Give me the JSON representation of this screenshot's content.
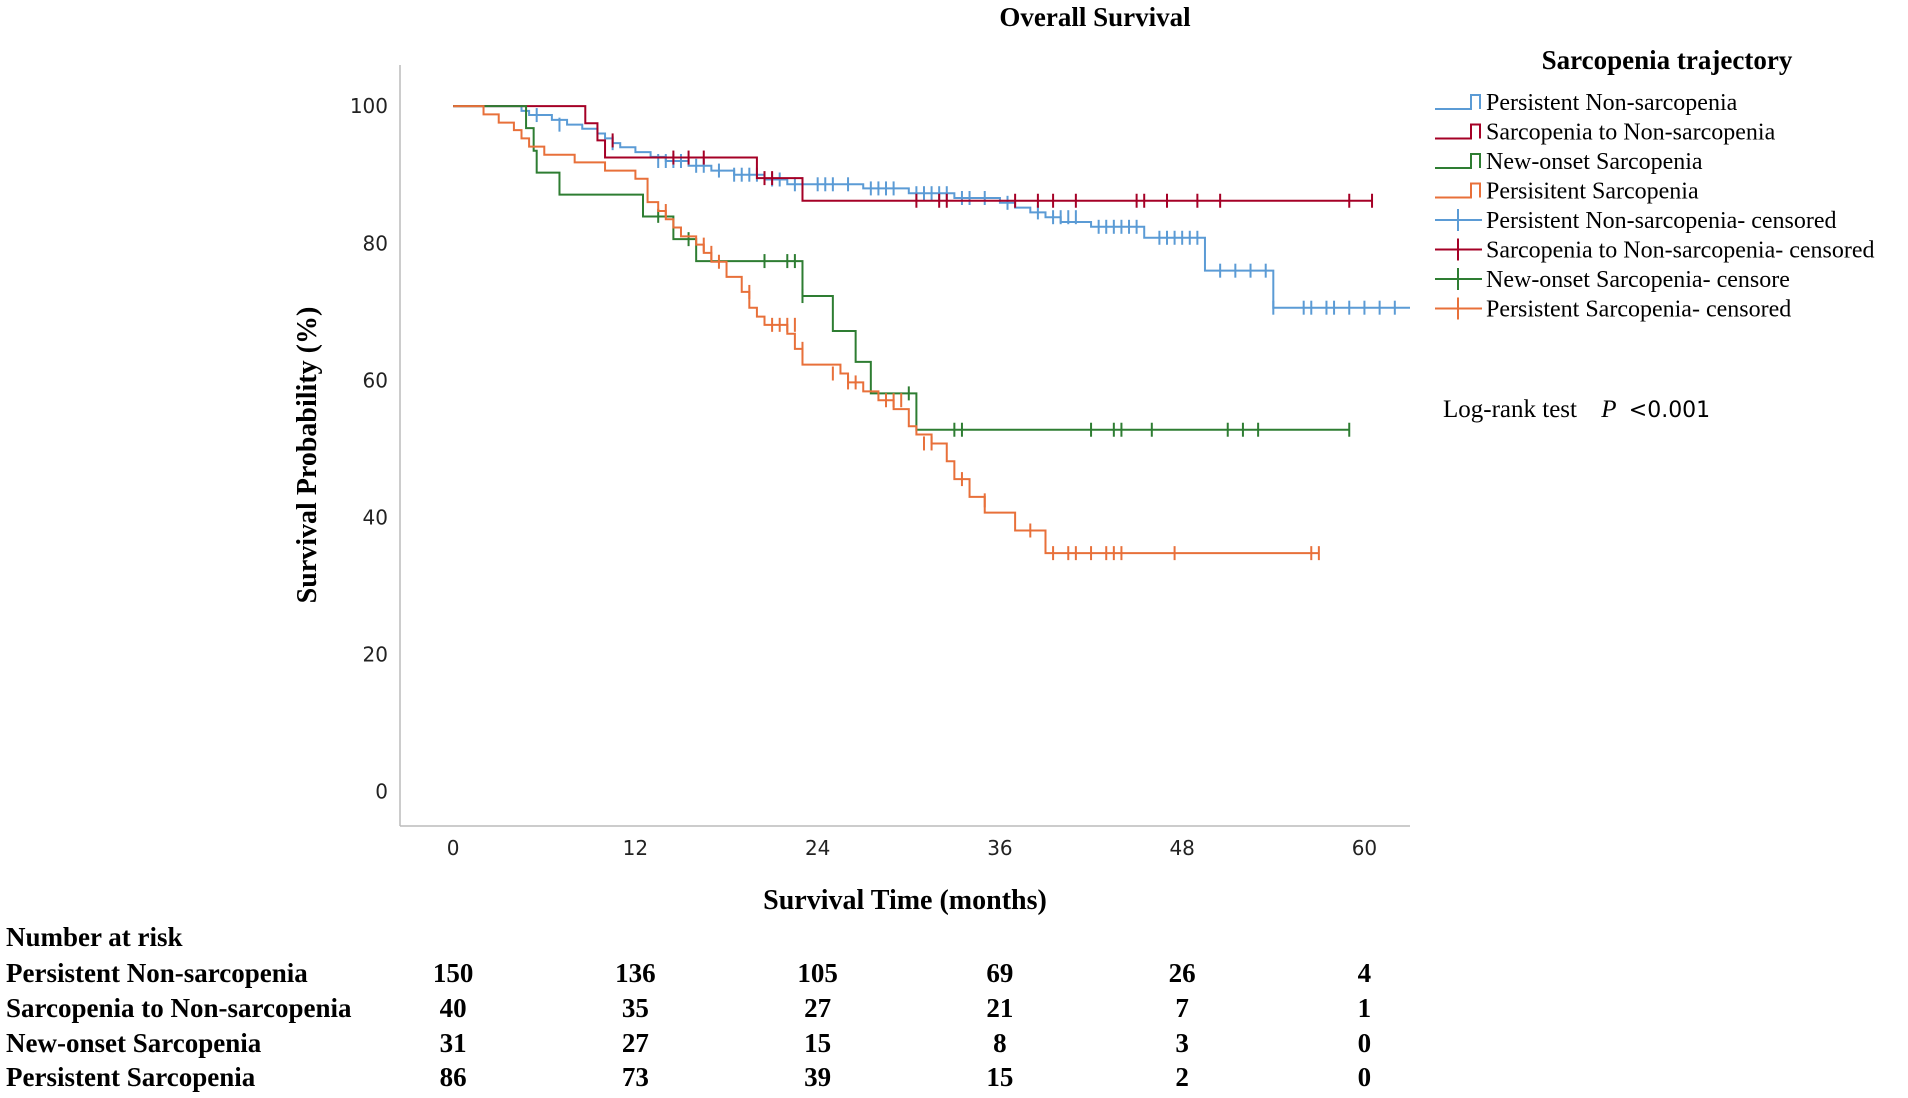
{
  "chart_data": {
    "type": "line",
    "subtype": "kaplan-meier",
    "title": "Overall Survival",
    "xlabel": "Survival Time (months)",
    "ylabel": "Survival Probability (%)",
    "xlim": [
      -3.5,
      63
    ],
    "ylim": [
      -5,
      106
    ],
    "xticks": [
      0,
      12,
      24,
      36,
      48,
      60
    ],
    "yticks": [
      0,
      20,
      40,
      60,
      80,
      100
    ],
    "legend_title": "Sarcopenia trajectory",
    "legend_entries": [
      {
        "label": "Persistent Non-sarcopenia",
        "kind": "step",
        "color": "#5b9bd5"
      },
      {
        "label": "Sarcopenia to Non-sarcopenia",
        "kind": "step",
        "color": "#a50026"
      },
      {
        "label": "New-onset Sarcopenia",
        "kind": "step",
        "color": "#2e7d32"
      },
      {
        "label": "Persisitent Sarcopenia",
        "kind": "step",
        "color": "#e8703a"
      },
      {
        "label": "Persistent Non-sarcopenia- censored",
        "kind": "censor",
        "color": "#5b9bd5"
      },
      {
        "label": "Sarcopenia to Non-sarcopenia- censored",
        "kind": "censor",
        "color": "#a50026"
      },
      {
        "label": "New-onset Sarcopenia- censore",
        "kind": "censor",
        "color": "#2e7d32"
      },
      {
        "label": "Persistent Sarcopenia- censored",
        "kind": "censor",
        "color": "#e8703a"
      }
    ],
    "annotation": {
      "prefix": "Log-rank test",
      "p_symbol": "P",
      "p_value": "<0.001"
    },
    "series": [
      {
        "name": "Persistent Non-sarcopenia",
        "color": "#5b9bd5",
        "steps": [
          [
            0,
            100
          ],
          [
            4.5,
            99.3
          ],
          [
            5,
            98.7
          ],
          [
            6.5,
            98
          ],
          [
            7.5,
            97.3
          ],
          [
            8.5,
            96.7
          ],
          [
            9.5,
            96
          ],
          [
            10,
            95.3
          ],
          [
            10.5,
            94.6
          ],
          [
            11,
            94
          ],
          [
            12,
            93.3
          ],
          [
            13,
            92.6
          ],
          [
            14,
            92
          ],
          [
            15.5,
            91.3
          ],
          [
            17,
            90.6
          ],
          [
            18.5,
            90
          ],
          [
            20.5,
            89.3
          ],
          [
            22,
            88.6
          ],
          [
            27,
            88
          ],
          [
            30,
            87.3
          ],
          [
            33,
            86.6
          ],
          [
            36,
            85.9
          ],
          [
            37,
            85.2
          ],
          [
            38,
            84.5
          ],
          [
            39,
            83.8
          ],
          [
            40,
            83.1
          ],
          [
            42,
            82.4
          ],
          [
            45.5,
            80.8
          ],
          [
            49.5,
            76
          ],
          [
            54,
            70.6
          ],
          [
            63,
            70.6
          ]
        ],
        "censored": [
          [
            5.5,
            98.7
          ],
          [
            7,
            97.3
          ],
          [
            10.5,
            94.6
          ],
          [
            13.5,
            92
          ],
          [
            14,
            92
          ],
          [
            14.5,
            92
          ],
          [
            15,
            92
          ],
          [
            16,
            91.3
          ],
          [
            16.5,
            91.3
          ],
          [
            17.5,
            90.6
          ],
          [
            18.5,
            90
          ],
          [
            19,
            90
          ],
          [
            19.5,
            90
          ],
          [
            20,
            90
          ],
          [
            21,
            89.3
          ],
          [
            21.5,
            89.3
          ],
          [
            22.5,
            88.6
          ],
          [
            23,
            88.6
          ],
          [
            24,
            88.6
          ],
          [
            24.5,
            88.6
          ],
          [
            25,
            88.6
          ],
          [
            26,
            88.6
          ],
          [
            27.5,
            88
          ],
          [
            28,
            88
          ],
          [
            28.5,
            88
          ],
          [
            29,
            88
          ],
          [
            30.5,
            87.3
          ],
          [
            31,
            87.3
          ],
          [
            31.5,
            87.3
          ],
          [
            32,
            87.3
          ],
          [
            32.5,
            87.3
          ],
          [
            33.5,
            86.6
          ],
          [
            34,
            86.6
          ],
          [
            35,
            86.6
          ],
          [
            36.5,
            85.9
          ],
          [
            38.5,
            84.5
          ],
          [
            39.5,
            83.8
          ],
          [
            40,
            83.8
          ],
          [
            40.5,
            83.8
          ],
          [
            41,
            83.8
          ],
          [
            42.5,
            82.4
          ],
          [
            43,
            82.4
          ],
          [
            43.5,
            82.4
          ],
          [
            44,
            82.4
          ],
          [
            44.5,
            82.4
          ],
          [
            45,
            82.4
          ],
          [
            46.5,
            80.8
          ],
          [
            47,
            80.8
          ],
          [
            47.5,
            80.8
          ],
          [
            48,
            80.8
          ],
          [
            48.5,
            80.8
          ],
          [
            49,
            80.8
          ],
          [
            50.5,
            76
          ],
          [
            51.5,
            76
          ],
          [
            52.5,
            76
          ],
          [
            53.5,
            76
          ],
          [
            54,
            70.6
          ],
          [
            56,
            70.6
          ],
          [
            56.5,
            70.6
          ],
          [
            57.5,
            70.6
          ],
          [
            58,
            70.6
          ],
          [
            59,
            70.6
          ],
          [
            60,
            70.6
          ],
          [
            61,
            70.6
          ],
          [
            62,
            70.6
          ]
        ]
      },
      {
        "name": "Sarcopenia to Non-sarcopenia",
        "color": "#a50026",
        "steps": [
          [
            0,
            100
          ],
          [
            8.7,
            97.5
          ],
          [
            9.5,
            95
          ],
          [
            10,
            92.5
          ],
          [
            20,
            89.5
          ],
          [
            23,
            86.2
          ],
          [
            60.5,
            86.2
          ]
        ],
        "censored": [
          [
            10.5,
            95
          ],
          [
            14.5,
            92.5
          ],
          [
            15.5,
            92.5
          ],
          [
            16.5,
            92.5
          ],
          [
            20.5,
            89.5
          ],
          [
            21,
            89.5
          ],
          [
            30.5,
            86.2
          ],
          [
            32,
            86.2
          ],
          [
            32.5,
            86.2
          ],
          [
            37,
            86.2
          ],
          [
            38.5,
            86.2
          ],
          [
            39.5,
            86.2
          ],
          [
            41,
            86.2
          ],
          [
            45,
            86.2
          ],
          [
            45.5,
            86.2
          ],
          [
            47,
            86.2
          ],
          [
            49,
            86.2
          ],
          [
            50.5,
            86.2
          ],
          [
            59,
            86.2
          ],
          [
            60.5,
            86.2
          ]
        ]
      },
      {
        "name": "New-onset Sarcopenia",
        "color": "#2e7d32",
        "steps": [
          [
            0,
            100
          ],
          [
            4.8,
            96.8
          ],
          [
            5.3,
            93.5
          ],
          [
            5.5,
            90.3
          ],
          [
            7,
            87.1
          ],
          [
            12.5,
            83.9
          ],
          [
            14.5,
            80.6
          ],
          [
            16,
            77.4
          ],
          [
            23,
            72.3
          ],
          [
            25,
            67.2
          ],
          [
            26.5,
            62.7
          ],
          [
            27.5,
            58.1
          ],
          [
            30.5,
            52.8
          ],
          [
            59,
            52.8
          ]
        ],
        "censored": [
          [
            13.5,
            84
          ],
          [
            15.5,
            80.6
          ],
          [
            20.5,
            77.4
          ],
          [
            22,
            77.4
          ],
          [
            22.5,
            77.4
          ],
          [
            23,
            72.3
          ],
          [
            30,
            58.1
          ],
          [
            33,
            52.8
          ],
          [
            33.5,
            52.8
          ],
          [
            42,
            52.8
          ],
          [
            43.5,
            52.8
          ],
          [
            44,
            52.8
          ],
          [
            46,
            52.8
          ],
          [
            51,
            52.8
          ],
          [
            52,
            52.8
          ],
          [
            53,
            52.8
          ],
          [
            59,
            52.8
          ]
        ]
      },
      {
        "name": "Persistent Sarcopenia",
        "color": "#e8703a",
        "steps": [
          [
            0,
            100
          ],
          [
            2,
            98.8
          ],
          [
            3,
            97.6
          ],
          [
            4,
            96.5
          ],
          [
            4.5,
            95.3
          ],
          [
            5,
            94.1
          ],
          [
            6,
            92.9
          ],
          [
            8,
            91.8
          ],
          [
            10,
            90.6
          ],
          [
            12,
            89.4
          ],
          [
            12.8,
            86
          ],
          [
            13.5,
            84.7
          ],
          [
            14,
            83.5
          ],
          [
            14.5,
            82.3
          ],
          [
            15,
            81
          ],
          [
            16,
            79.8
          ],
          [
            16.5,
            78.6
          ],
          [
            17,
            77.3
          ],
          [
            18,
            75.1
          ],
          [
            19,
            72.9
          ],
          [
            19.5,
            70.6
          ],
          [
            20,
            69.3
          ],
          [
            20.5,
            68.1
          ],
          [
            22,
            66.8
          ],
          [
            22.5,
            64.6
          ],
          [
            23,
            62.3
          ],
          [
            25.5,
            61
          ],
          [
            26,
            59.7
          ],
          [
            27,
            58.4
          ],
          [
            28,
            57.1
          ],
          [
            29,
            55.8
          ],
          [
            30,
            53.3
          ],
          [
            30.5,
            52.1
          ],
          [
            31.5,
            50.8
          ],
          [
            32.5,
            48.2
          ],
          [
            33,
            45.6
          ],
          [
            34,
            43
          ],
          [
            35,
            40.7
          ],
          [
            37,
            38.1
          ],
          [
            39,
            34.8
          ],
          [
            57,
            34.8
          ]
        ],
        "censored": [
          [
            14,
            84.7
          ],
          [
            16.5,
            79.8
          ],
          [
            17,
            78.6
          ],
          [
            17.5,
            77.3
          ],
          [
            19.5,
            72.9
          ],
          [
            21,
            68.1
          ],
          [
            21.5,
            68.1
          ],
          [
            22,
            68.1
          ],
          [
            22.5,
            68.1
          ],
          [
            23,
            64.6
          ],
          [
            25,
            61
          ],
          [
            26,
            59.7
          ],
          [
            26.5,
            59.7
          ],
          [
            28.5,
            57.1
          ],
          [
            29,
            57.1
          ],
          [
            29.5,
            57.1
          ],
          [
            31,
            50.8
          ],
          [
            31.5,
            50.8
          ],
          [
            33.5,
            45.6
          ],
          [
            35,
            42.5
          ],
          [
            38,
            38.1
          ],
          [
            39.5,
            34.8
          ],
          [
            40.5,
            34.8
          ],
          [
            41,
            34.8
          ],
          [
            42,
            34.8
          ],
          [
            43,
            34.8
          ],
          [
            43.5,
            34.8
          ],
          [
            44,
            34.8
          ],
          [
            47.5,
            34.8
          ],
          [
            56.5,
            34.8
          ],
          [
            57,
            34.8
          ]
        ]
      }
    ],
    "risk_table": {
      "heading": "Number at risk",
      "time_points": [
        0,
        12,
        24,
        36,
        48,
        60
      ],
      "rows": [
        {
          "label": "Persistent Non-sarcopenia",
          "values": [
            "150",
            "136",
            "105",
            "69",
            "26",
            "4"
          ]
        },
        {
          "label": "Sarcopenia to Non-sarcopenia",
          "values": [
            "40",
            "35",
            "27",
            "21",
            "7",
            "1"
          ]
        },
        {
          "label": "New-onset Sarcopenia",
          "values": [
            "31",
            "27",
            "15",
            "8",
            "3",
            "0"
          ]
        },
        {
          "label": "Persistent Sarcopenia",
          "values": [
            "86",
            "73",
            "39",
            "15",
            "2",
            "0"
          ]
        }
      ]
    }
  }
}
